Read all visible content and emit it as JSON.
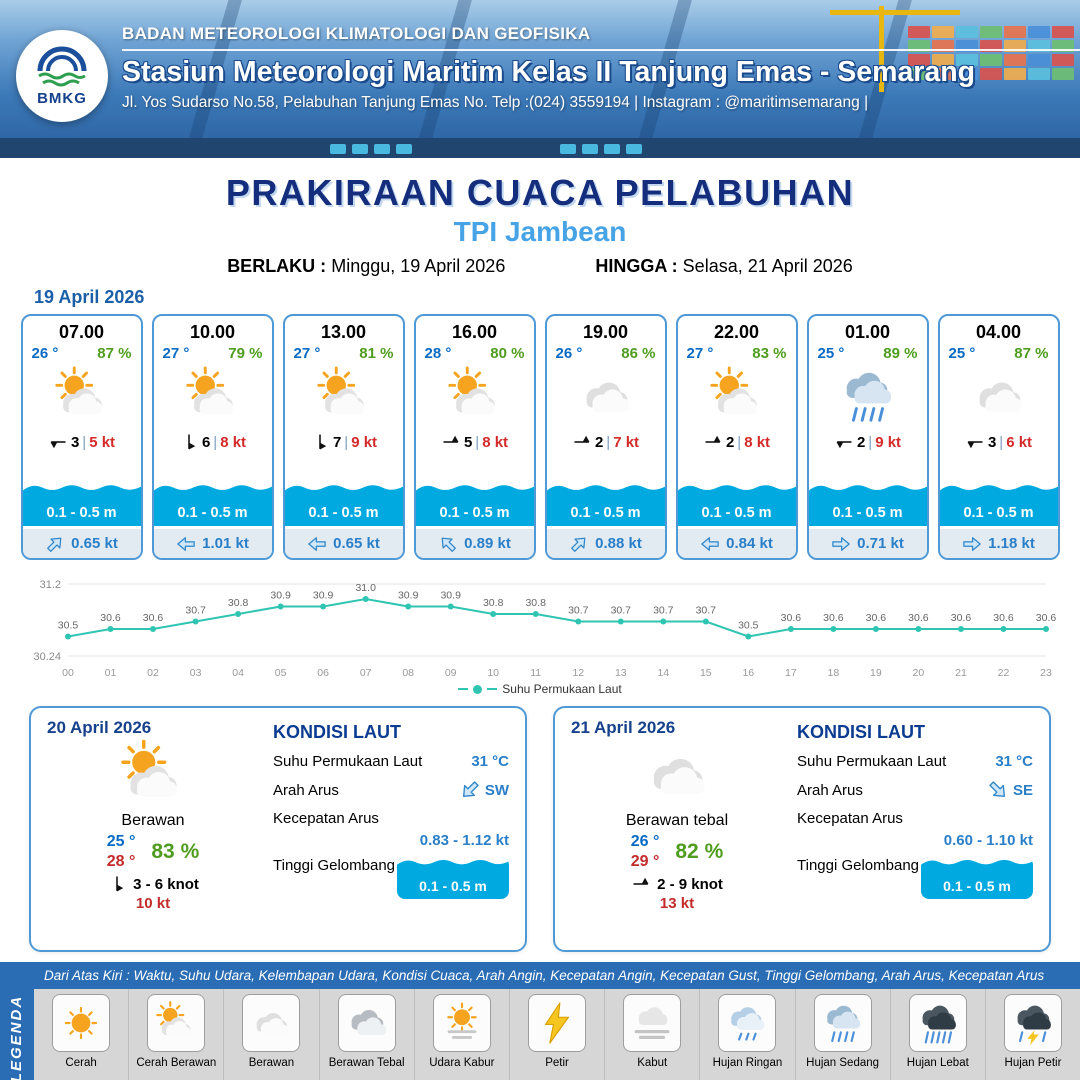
{
  "header": {
    "logo_label": "BMKG",
    "agency": "BADAN METEOROLOGI KLIMATOLOGI DAN GEOFISIKA",
    "station": "Stasiun Meteorologi Maritim Kelas II Tanjung Emas - Semarang",
    "address": "Jl. Yos Sudarso No.58, Pelabuhan Tanjung Emas No. Telp :(024) 3559194 | Instagram : @maritimsemarang |"
  },
  "title": {
    "main": "PRAKIRAAN CUACA PELABUHAN",
    "location": "TPI Jambean",
    "berlaku_label": "BERLAKU :",
    "berlaku_value": "Minggu, 19 April 2026",
    "hingga_label": "HINGGA :",
    "hingga_value": "Selasa, 21 April 2026"
  },
  "forecast": {
    "date": "19 April 2026",
    "cards": [
      {
        "time": "07.00",
        "temp": "26 °",
        "humidity": "87 %",
        "icon": "cerah-berawan",
        "wind_dir_deg": 270,
        "wind_val": "3",
        "gust": "5 kt",
        "wave": "0.1 - 0.5 m",
        "current_dir_deg": -45,
        "current": "0.65 kt"
      },
      {
        "time": "10.00",
        "temp": "27 °",
        "humidity": "79 %",
        "icon": "cerah-berawan",
        "wind_dir_deg": 180,
        "wind_val": "6",
        "gust": "8 kt",
        "wave": "0.1 - 0.5 m",
        "current_dir_deg": 180,
        "current": "1.01 kt"
      },
      {
        "time": "13.00",
        "temp": "27 °",
        "humidity": "81 %",
        "icon": "cerah-berawan",
        "wind_dir_deg": 180,
        "wind_val": "7",
        "gust": "9 kt",
        "wave": "0.1 - 0.5 m",
        "current_dir_deg": 180,
        "current": "0.65 kt"
      },
      {
        "time": "16.00",
        "temp": "28 °",
        "humidity": "80 %",
        "icon": "cerah-berawan",
        "wind_dir_deg": 90,
        "wind_val": "5",
        "gust": "8 kt",
        "wave": "0.1 - 0.5 m",
        "current_dir_deg": -135,
        "current": "0.89 kt"
      },
      {
        "time": "19.00",
        "temp": "26 °",
        "humidity": "86 %",
        "icon": "berawan",
        "wind_dir_deg": 90,
        "wind_val": "2",
        "gust": "7 kt",
        "wave": "0.1 - 0.5 m",
        "current_dir_deg": -45,
        "current": "0.88 kt"
      },
      {
        "time": "22.00",
        "temp": "27 °",
        "humidity": "83 %",
        "icon": "cerah-berawan",
        "wind_dir_deg": 90,
        "wind_val": "2",
        "gust": "8 kt",
        "wave": "0.1 - 0.5 m",
        "current_dir_deg": 180,
        "current": "0.84 kt"
      },
      {
        "time": "01.00",
        "temp": "25 °",
        "humidity": "89 %",
        "icon": "hujan-sedang",
        "wind_dir_deg": 270,
        "wind_val": "2",
        "gust": "9 kt",
        "wave": "0.1 - 0.5 m",
        "current_dir_deg": 0,
        "current": "0.71 kt"
      },
      {
        "time": "04.00",
        "temp": "25 °",
        "humidity": "87 %",
        "icon": "berawan",
        "wind_dir_deg": 270,
        "wind_val": "3",
        "gust": "6 kt",
        "wave": "0.1 - 0.5 m",
        "current_dir_deg": 0,
        "current": "1.18 kt"
      }
    ]
  },
  "chart_data": {
    "type": "line",
    "series_name": "Suhu Permukaan Laut",
    "x": [
      "00",
      "01",
      "02",
      "03",
      "04",
      "05",
      "06",
      "07",
      "08",
      "09",
      "10",
      "11",
      "12",
      "13",
      "14",
      "15",
      "16",
      "17",
      "18",
      "19",
      "20",
      "21",
      "22",
      "23"
    ],
    "values": [
      30.5,
      30.6,
      30.6,
      30.7,
      30.8,
      30.9,
      30.9,
      31.0,
      30.9,
      30.9,
      30.8,
      30.8,
      30.7,
      30.7,
      30.7,
      30.7,
      30.5,
      30.6,
      30.6,
      30.6,
      30.6,
      30.6,
      30.6,
      30.6
    ],
    "ylim": [
      30.24,
      31.2
    ],
    "y_ticks": [
      "31.2",
      "30.24"
    ],
    "line_color": "#2fc5b2",
    "grid": "horizontal",
    "legend_position": "bottom"
  },
  "daily": [
    {
      "date": "20 April 2026",
      "icon": "cerah-berawan",
      "condition": "Berawan",
      "temp_min": "25 °",
      "temp_max": "28 °",
      "humidity": "83 %",
      "wind_dir_deg": 180,
      "wind_range": "3 - 6 knot",
      "wind_gust": "10 kt",
      "sea": {
        "title": "KONDISI LAUT",
        "sst_label": "Suhu Permukaan Laut",
        "sst": "31 °C",
        "arah_label": "Arah Arus",
        "arah": "SW",
        "arah_deg": 135,
        "kec_label": "Kecepatan Arus",
        "kec": "0.83 - 1.12 kt",
        "gel_label": "Tinggi Gelombang",
        "gel": "0.1 - 0.5 m"
      }
    },
    {
      "date": "21 April 2026",
      "icon": "berawan",
      "condition": "Berawan tebal",
      "temp_min": "26 °",
      "temp_max": "29 °",
      "humidity": "82 %",
      "wind_dir_deg": 90,
      "wind_range": "2 - 9 knot",
      "wind_gust": "13 kt",
      "sea": {
        "title": "KONDISI LAUT",
        "sst_label": "Suhu Permukaan Laut",
        "sst": "31 °C",
        "arah_label": "Arah Arus",
        "arah": "SE",
        "arah_deg": 45,
        "kec_label": "Kecepatan Arus",
        "kec": "0.60 - 1.10 kt",
        "gel_label": "Tinggi Gelombang",
        "gel": "0.1 - 0.5 m"
      }
    }
  ],
  "legend": {
    "vertical_label": "LEGENDA",
    "description": "Dari Atas Kiri : Waktu, Suhu Udara, Kelembapan Udara, Kondisi Cuaca, Arah Angin, Kecepatan Angin, Kecepatan Gust, Tinggi Gelombang, Arah Arus, Kecepatan Arus",
    "items": [
      {
        "label": "Cerah",
        "icon": "cerah"
      },
      {
        "label": "Cerah Berawan",
        "icon": "cerah-berawan"
      },
      {
        "label": "Berawan",
        "icon": "berawan"
      },
      {
        "label": "Berawan Tebal",
        "icon": "berawan-tebal"
      },
      {
        "label": "Udara Kabur",
        "icon": "udara-kabur"
      },
      {
        "label": "Petir",
        "icon": "petir"
      },
      {
        "label": "Kabut",
        "icon": "kabut"
      },
      {
        "label": "Hujan Ringan",
        "icon": "hujan-ringan"
      },
      {
        "label": "Hujan Sedang",
        "icon": "hujan-sedang"
      },
      {
        "label": "Hujan Lebat",
        "icon": "hujan-lebat"
      },
      {
        "label": "Hujan Petir",
        "icon": "hujan-petir"
      }
    ]
  }
}
